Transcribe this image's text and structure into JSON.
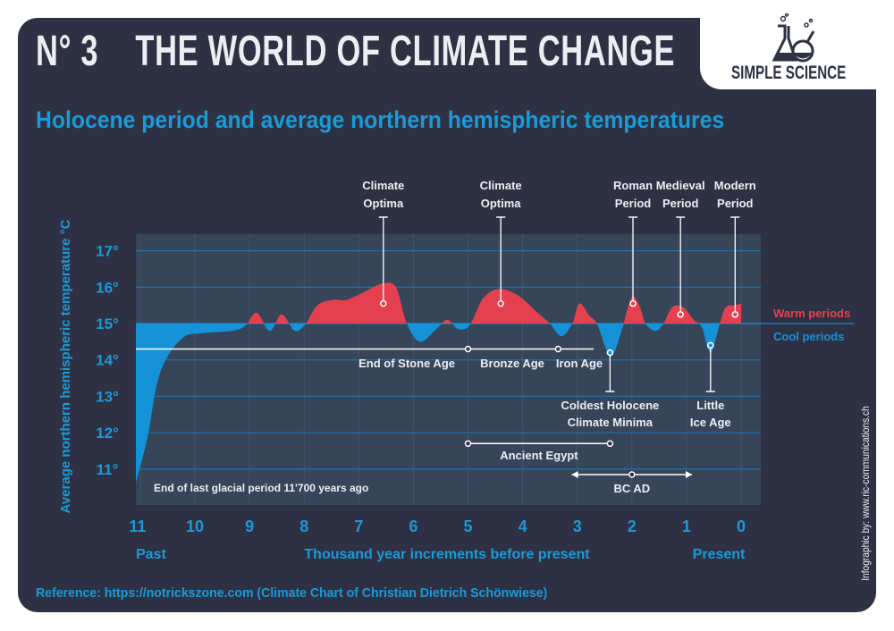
{
  "header": {
    "title": "N° 3    THE WORLD OF CLIMATE CHANGE",
    "subtitle": "Holocene period and average northern hemispheric temperatures",
    "logo_text": "SIMPLE SCIENCE",
    "logo_icon": "flasks-icon"
  },
  "footer": {
    "reference": "Reference: https://notrickszone.com (Climate Chart of Christian Dietrich Schönwiese)",
    "credit": "Infographic by: www.ric-communications.ch"
  },
  "colors": {
    "background": "#2e3143",
    "plot": "#374559",
    "warm": "#e5404f",
    "cool": "#1592d8",
    "accent": "#1a9ad6",
    "text": "#eceef2"
  },
  "chart_data": {
    "type": "area",
    "ylabel": "Average northern hemispheric temperature °C",
    "xlabel": "Thousand year increments before present",
    "x_left_label": "Past",
    "x_right_label": "Present",
    "xlim": [
      11.1,
      0
    ],
    "ylim": [
      10,
      17.5
    ],
    "baseline": 15,
    "x_ticks": [
      11,
      10,
      9,
      8,
      7,
      6,
      5,
      4,
      3,
      2,
      1,
      0
    ],
    "y_ticks": [
      {
        "v": 17,
        "label": "17°"
      },
      {
        "v": 16,
        "label": "16°"
      },
      {
        "v": 15,
        "label": "15°"
      },
      {
        "v": 14,
        "label": "14°"
      },
      {
        "v": 13,
        "label": "13°"
      },
      {
        "v": 12,
        "label": "12°"
      },
      {
        "v": 11,
        "label": "11°"
      }
    ],
    "grid": true,
    "legend": [
      {
        "name": "Warm periods",
        "color": "#e5404f"
      },
      {
        "name": "Cool periods",
        "color": "#1592d8"
      }
    ],
    "series": [
      {
        "x": [
          11.08,
          10.87,
          10.7,
          10.51,
          10.2,
          9.9,
          9.31,
          9.07,
          8.87,
          8.63,
          8.41,
          8.17,
          7.97,
          7.76,
          7.48,
          7.22,
          6.86,
          6.56,
          6.32,
          6.12,
          5.88,
          5.58,
          5.38,
          5.18,
          4.97,
          4.72,
          4.42,
          4.06,
          3.73,
          3.5,
          3.29,
          3.09,
          2.96,
          2.77,
          2.64,
          2.39,
          2.19,
          2.08,
          1.98,
          1.85,
          1.75,
          1.57,
          1.42,
          1.26,
          1.06,
          0.87,
          0.72,
          0.56,
          0.39,
          0.28,
          0.11,
          0.0
        ],
        "y": [
          10.63,
          11.85,
          13.3,
          14.07,
          14.63,
          14.73,
          14.8,
          14.95,
          15.3,
          14.8,
          15.25,
          14.8,
          15.0,
          15.5,
          15.65,
          15.65,
          15.9,
          16.1,
          16.0,
          15.0,
          14.5,
          14.85,
          15.1,
          14.85,
          14.95,
          15.7,
          15.95,
          15.75,
          15.3,
          15.0,
          14.65,
          15.0,
          15.55,
          15.2,
          15.0,
          14.1,
          14.8,
          15.4,
          15.75,
          15.45,
          15.0,
          14.8,
          15.0,
          15.45,
          15.45,
          15.1,
          14.9,
          14.2,
          15.0,
          15.45,
          15.5,
          15.55
        ]
      }
    ],
    "annotations_top": [
      {
        "lines": [
          "Climate",
          "Optima"
        ],
        "x": 6.55,
        "y": 15.55
      },
      {
        "lines": [
          "Climate",
          "Optima"
        ],
        "x": 4.4,
        "y": 15.55
      },
      {
        "lines": [
          "Roman",
          "Period"
        ],
        "x": 1.98,
        "y": 15.55
      },
      {
        "lines": [
          "Medieval",
          "Period"
        ],
        "x": 1.11,
        "y": 15.25
      },
      {
        "lines": [
          "Modern",
          "Period"
        ],
        "x": 0.11,
        "y": 15.25
      }
    ],
    "annotations_bottom": [
      {
        "lines": [
          "Coldest Holocene",
          "Climate Minima"
        ],
        "x": 2.4,
        "y": 14.2
      },
      {
        "lines": [
          "Little",
          "Ice Age"
        ],
        "x": 0.56,
        "y": 14.4
      }
    ],
    "periods": [
      {
        "label": "End of Stone Age",
        "marker": 5.0
      },
      {
        "label": "Bronze Age",
        "marker": 3.35
      },
      {
        "label": "Iron Age",
        "marker": null
      }
    ],
    "ancient_egypt": {
      "label": "Ancient Egypt",
      "from": 5.0,
      "to": 2.4
    },
    "bc_ad": {
      "label": "BC   AD",
      "from": 3.1,
      "to": 0.9,
      "marker": 2.0
    },
    "glacial_note": "End of last glacial period 11'700 years ago"
  }
}
